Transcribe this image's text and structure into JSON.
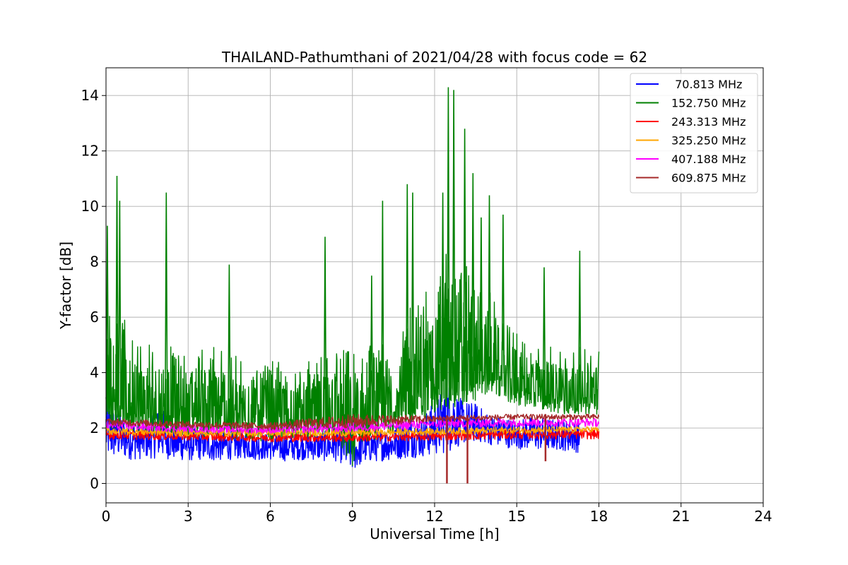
{
  "chart_data": {
    "type": "line",
    "title": "THAILAND-Pathumthani of 2021/04/28 with focus code = 62",
    "xlabel": "Universal Time [h]",
    "ylabel": "Y-factor [dB]",
    "xlim": [
      0,
      24
    ],
    "ylim": [
      -0.7,
      15.0
    ],
    "xticks": [
      0,
      3,
      6,
      9,
      12,
      15,
      18,
      21,
      24
    ],
    "yticks": [
      0,
      2,
      4,
      6,
      8,
      10,
      12,
      14
    ],
    "grid": true,
    "legend_position": "top-right",
    "series": [
      {
        "name": " 70.813 MHz",
        "color": "#0000ff",
        "x": [
          0.0,
          0.5,
          1.0,
          1.5,
          2.0,
          2.5,
          3.0,
          3.5,
          4.0,
          4.5,
          5.0,
          5.5,
          6.0,
          6.5,
          7.0,
          7.5,
          8.0,
          8.5,
          8.9,
          9.0,
          9.2,
          9.5,
          10.0,
          10.5,
          11.0,
          11.5,
          12.0,
          12.5,
          13.0,
          13.5,
          14.0,
          14.5,
          15.0,
          15.5,
          16.0,
          16.5,
          17.0,
          17.3
        ],
        "band_low": [
          0.8,
          0.9,
          0.85,
          0.9,
          0.9,
          0.85,
          0.8,
          0.85,
          0.8,
          0.85,
          0.9,
          0.85,
          0.85,
          0.8,
          0.85,
          0.85,
          0.8,
          0.8,
          0.45,
          0.4,
          0.6,
          0.75,
          0.8,
          0.85,
          0.9,
          0.95,
          1.0,
          1.1,
          1.4,
          1.5,
          1.4,
          1.3,
          1.25,
          1.2,
          1.2,
          1.2,
          1.15,
          1.1
        ],
        "band_high": [
          3.1,
          2.5,
          2.3,
          2.2,
          2.8,
          2.1,
          2.0,
          2.0,
          1.9,
          1.9,
          1.9,
          1.8,
          1.8,
          1.8,
          1.8,
          1.9,
          1.9,
          2.0,
          2.0,
          1.9,
          1.8,
          1.9,
          2.0,
          2.0,
          2.5,
          2.3,
          3.0,
          3.7,
          3.0,
          2.9,
          2.5,
          2.4,
          2.3,
          2.4,
          2.4,
          2.3,
          2.3,
          2.2
        ]
      },
      {
        "name": "152.750 MHz",
        "color": "#008000",
        "x": [
          0.0,
          0.5,
          1.0,
          1.5,
          2.0,
          2.5,
          3.0,
          3.5,
          4.0,
          4.5,
          5.0,
          5.5,
          6.0,
          6.5,
          7.0,
          7.5,
          8.0,
          8.5,
          8.9,
          9.0,
          9.2,
          9.5,
          10.0,
          10.5,
          11.0,
          11.5,
          12.0,
          12.5,
          13.0,
          13.5,
          14.0,
          14.5,
          15.0,
          15.5,
          16.0,
          16.5,
          17.0,
          17.5,
          18.0
        ],
        "band_low": [
          2.0,
          1.9,
          1.8,
          1.7,
          1.7,
          1.7,
          1.6,
          1.6,
          1.6,
          1.6,
          1.5,
          1.5,
          1.5,
          1.5,
          1.5,
          1.6,
          1.6,
          1.5,
          0.5,
          0.05,
          1.0,
          1.5,
          1.6,
          1.8,
          2.0,
          2.2,
          2.5,
          2.6,
          2.8,
          3.0,
          3.2,
          3.0,
          2.8,
          2.7,
          2.6,
          2.5,
          2.5,
          2.5,
          2.5
        ],
        "band_high": [
          6.8,
          6.2,
          5.5,
          5.0,
          5.0,
          5.0,
          4.8,
          5.2,
          5.0,
          4.7,
          4.5,
          4.5,
          4.6,
          4.4,
          4.3,
          4.5,
          4.6,
          5.0,
          5.0,
          5.5,
          4.8,
          5.0,
          5.0,
          5.0,
          6.5,
          7.0,
          7.5,
          8.5,
          8.0,
          7.5,
          7.0,
          6.0,
          5.5,
          5.0,
          5.0,
          5.0,
          5.0,
          5.0,
          4.8
        ],
        "peaks": [
          [
            0.05,
            9.3
          ],
          [
            0.4,
            11.1
          ],
          [
            0.5,
            10.2
          ],
          [
            2.2,
            10.5
          ],
          [
            4.5,
            7.9
          ],
          [
            8.0,
            8.9
          ],
          [
            9.7,
            7.5
          ],
          [
            10.1,
            10.2
          ],
          [
            11.0,
            10.8
          ],
          [
            11.2,
            10.5
          ],
          [
            12.3,
            10.5
          ],
          [
            12.5,
            14.3
          ],
          [
            12.7,
            14.2
          ],
          [
            13.1,
            12.8
          ],
          [
            13.4,
            11.2
          ],
          [
            13.7,
            9.6
          ],
          [
            14.0,
            10.4
          ],
          [
            14.5,
            9.7
          ],
          [
            16.0,
            7.8
          ],
          [
            17.3,
            8.4
          ]
        ]
      },
      {
        "name": "243.313 MHz",
        "color": "#ff0000",
        "x": [
          0.0,
          3.0,
          6.0,
          9.0,
          12.0,
          15.0,
          18.0
        ],
        "band_low": [
          1.6,
          1.55,
          1.5,
          1.5,
          1.55,
          1.6,
          1.6
        ],
        "band_high": [
          1.95,
          1.85,
          1.8,
          1.8,
          1.85,
          1.95,
          1.95
        ]
      },
      {
        "name": "325.250 MHz",
        "color": "#ffa500",
        "x": [
          0.0,
          3.0,
          6.0,
          9.0,
          12.0,
          15.0,
          18.0
        ],
        "band_low": [
          1.75,
          1.7,
          1.7,
          1.7,
          1.75,
          1.8,
          1.85
        ],
        "band_high": [
          2.05,
          1.95,
          1.95,
          1.95,
          2.0,
          2.05,
          2.05
        ]
      },
      {
        "name": "407.188 MHz",
        "color": "#ff00ff",
        "x": [
          0.0,
          3.0,
          6.0,
          9.0,
          12.0,
          15.0,
          18.0
        ],
        "band_low": [
          1.95,
          1.85,
          1.8,
          1.85,
          2.0,
          2.05,
          2.05
        ],
        "band_high": [
          2.25,
          2.1,
          2.05,
          2.2,
          2.3,
          2.35,
          2.35
        ]
      },
      {
        "name": "609.875 MHz",
        "color": "#a52a2a",
        "x": [
          0.0,
          3.0,
          6.0,
          9.0,
          12.0,
          15.0,
          18.0
        ],
        "band_low": [
          2.1,
          2.0,
          1.95,
          2.0,
          2.2,
          2.3,
          2.3
        ],
        "band_high": [
          2.35,
          2.25,
          2.2,
          2.5,
          2.45,
          2.5,
          2.5
        ],
        "dropouts": [
          [
            12.45,
            0.0
          ],
          [
            13.2,
            0.0
          ],
          [
            16.05,
            0.8
          ]
        ]
      }
    ]
  }
}
